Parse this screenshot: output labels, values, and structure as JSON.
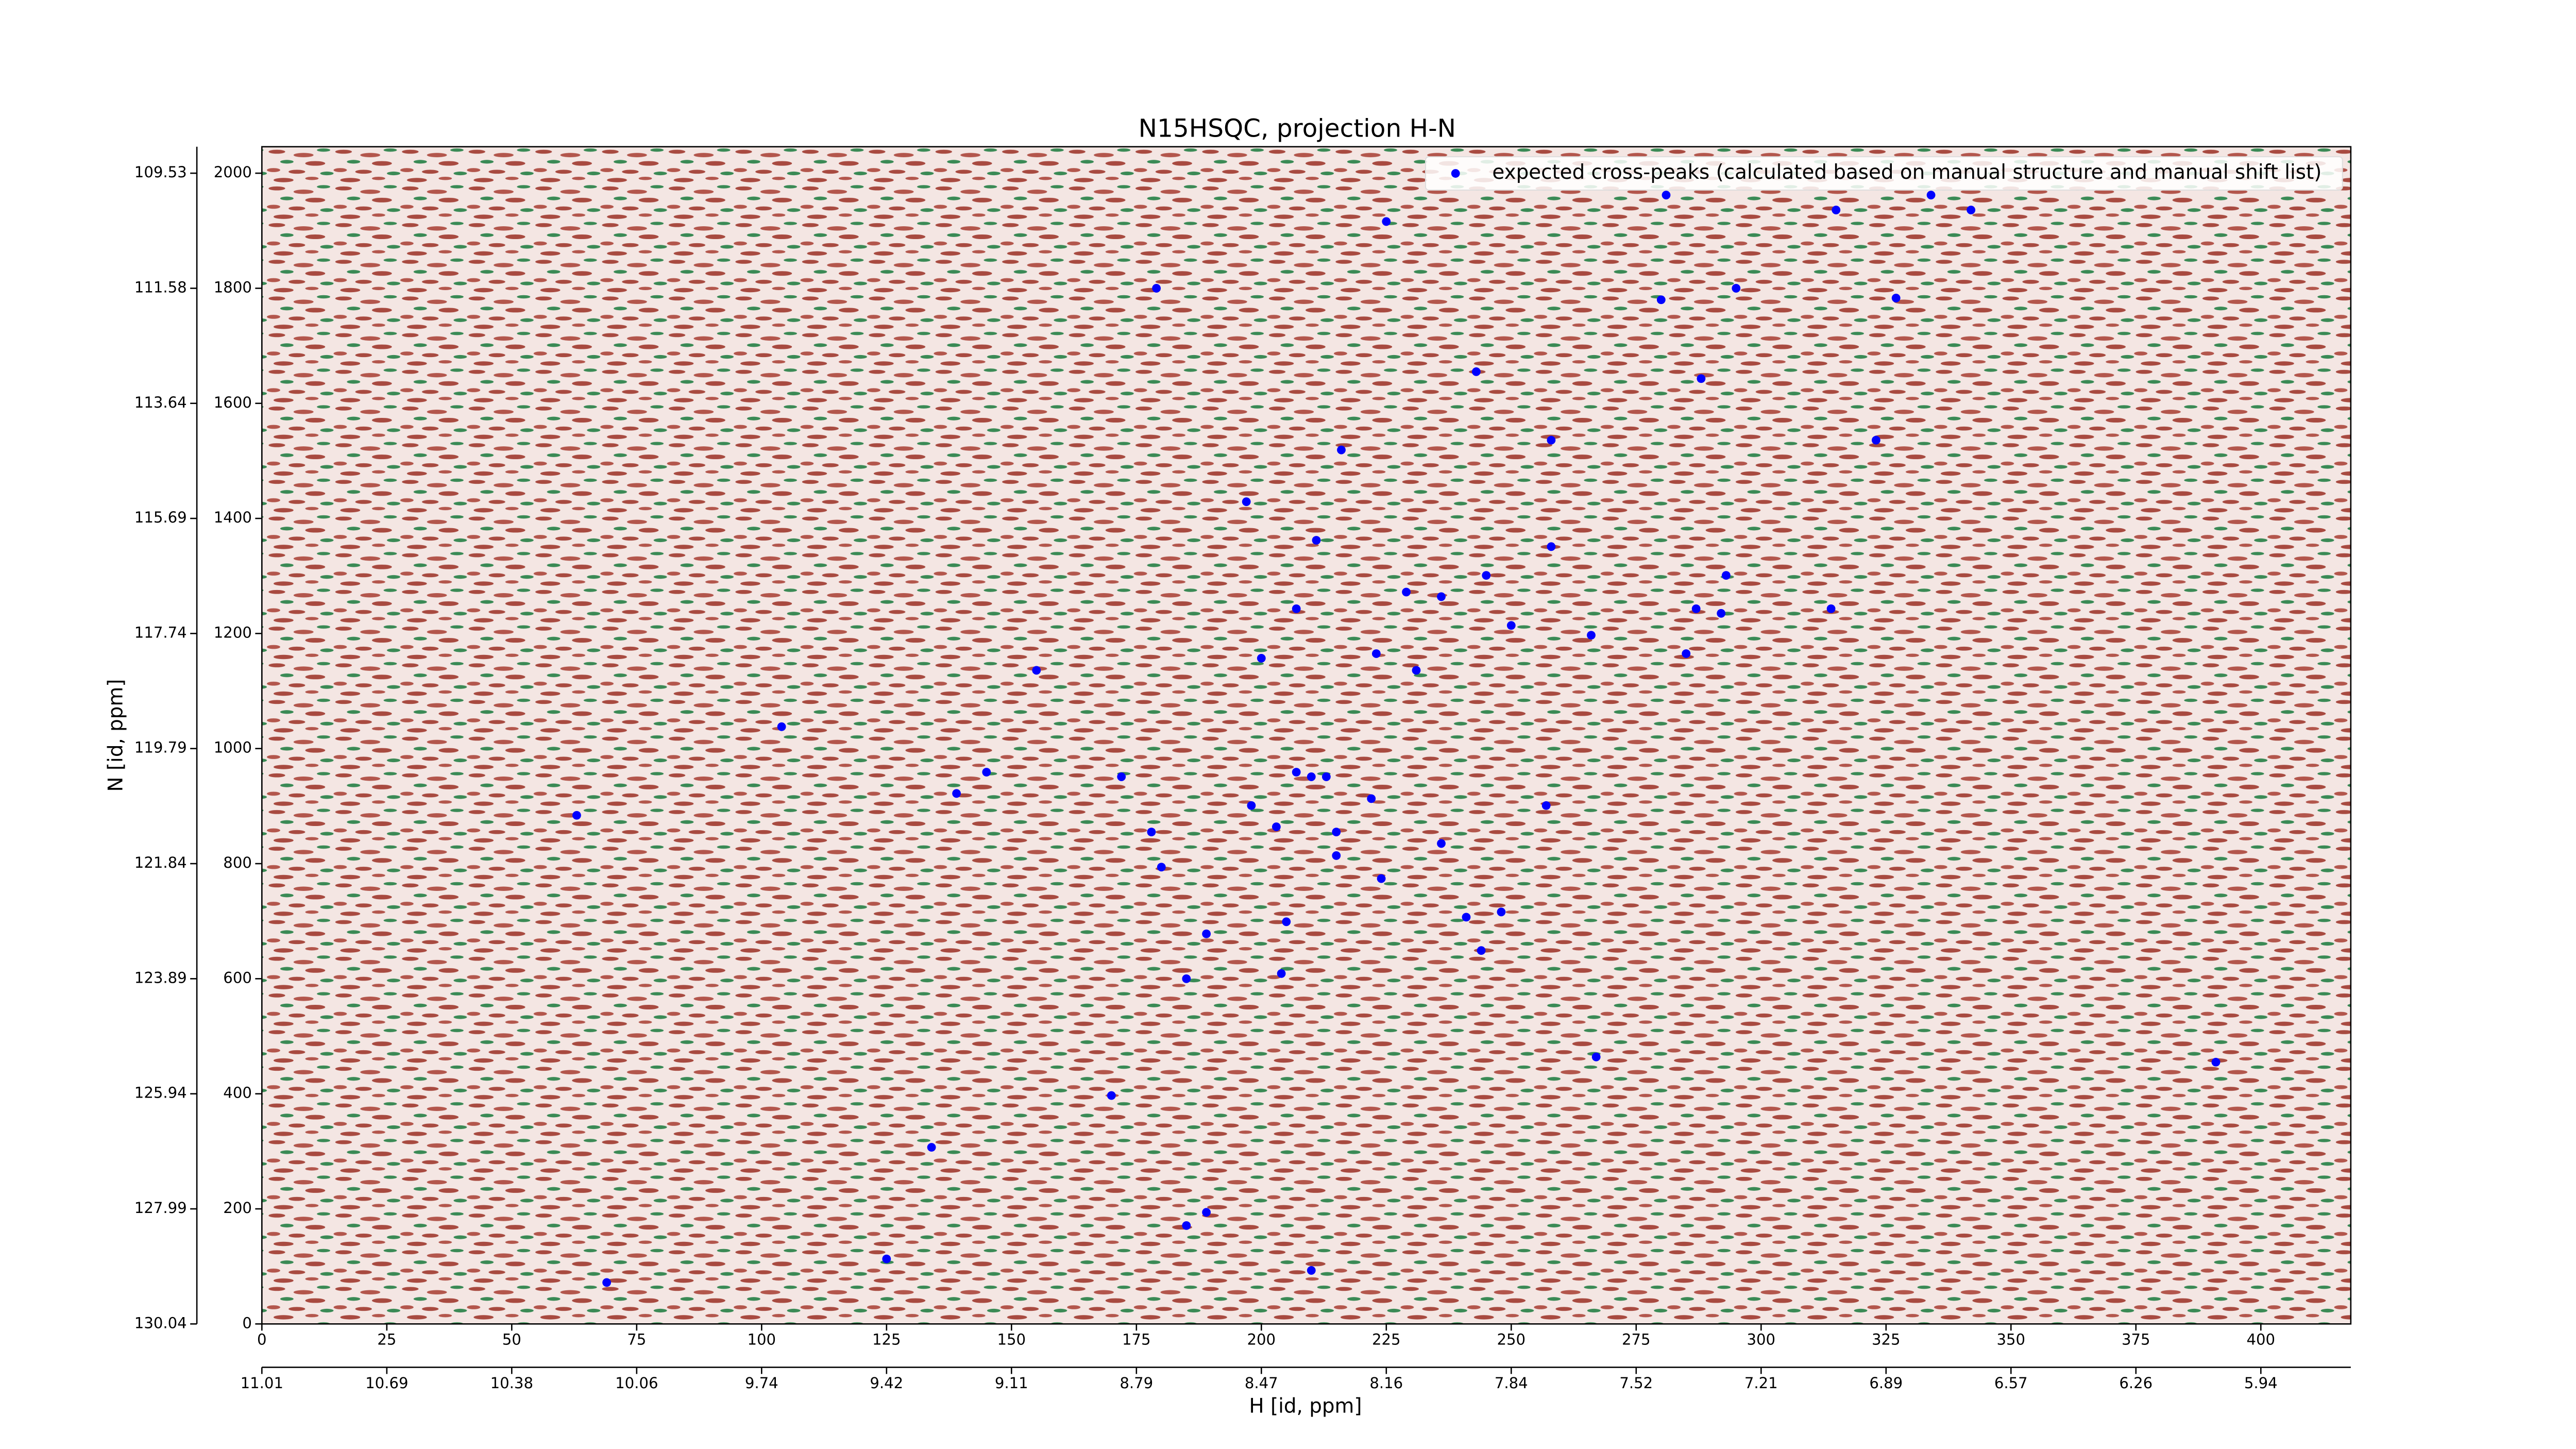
{
  "chart_data": {
    "type": "scatter",
    "title": "N15HSQC, projection H-N",
    "x_label": "H [id, ppm]",
    "y_label": "N [id, ppm]",
    "xlim": [
      0,
      418
    ],
    "ylim": [
      0,
      2046
    ],
    "xticks": [
      0,
      25,
      50,
      75,
      100,
      125,
      150,
      175,
      200,
      225,
      250,
      275,
      300,
      325,
      350,
      375,
      400
    ],
    "xticks_ppm": [
      {
        "value": 0,
        "label": "11.01"
      },
      {
        "value": 25,
        "label": "10.69"
      },
      {
        "value": 50,
        "label": "10.38"
      },
      {
        "value": 75,
        "label": "10.06"
      },
      {
        "value": 100,
        "label": "9.74"
      },
      {
        "value": 125,
        "label": "9.42"
      },
      {
        "value": 150,
        "label": "9.11"
      },
      {
        "value": 175,
        "label": "8.79"
      },
      {
        "value": 200,
        "label": "8.47"
      },
      {
        "value": 225,
        "label": "8.16"
      },
      {
        "value": 250,
        "label": "7.84"
      },
      {
        "value": 275,
        "label": "7.52"
      },
      {
        "value": 300,
        "label": "7.21"
      },
      {
        "value": 325,
        "label": "6.89"
      },
      {
        "value": 350,
        "label": "6.57"
      },
      {
        "value": 375,
        "label": "6.26"
      },
      {
        "value": 400,
        "label": "5.94"
      }
    ],
    "yticks": [
      0,
      200,
      400,
      600,
      800,
      1000,
      1200,
      1400,
      1600,
      1800,
      2000
    ],
    "yticks_ppm": [
      {
        "value": 0,
        "label": "130.04"
      },
      {
        "value": 200,
        "label": "127.99"
      },
      {
        "value": 400,
        "label": "125.94"
      },
      {
        "value": 600,
        "label": "123.89"
      },
      {
        "value": 800,
        "label": "121.84"
      },
      {
        "value": 1000,
        "label": "119.79"
      },
      {
        "value": 1200,
        "label": "117.74"
      },
      {
        "value": 1400,
        "label": "115.69"
      },
      {
        "value": 1600,
        "label": "113.64"
      },
      {
        "value": 1800,
        "label": "111.58"
      },
      {
        "value": 2000,
        "label": "109.53"
      }
    ],
    "legend": "upper right",
    "series": [
      {
        "name": "expected cross-peaks (calculated based on manual structure and manual shift list)",
        "color": "#0000ff",
        "x": [
          281,
          334,
          315,
          342,
          225,
          179,
          280,
          295,
          327,
          243,
          288,
          258,
          323,
          216,
          197,
          211,
          258,
          245,
          293,
          229,
          236,
          207,
          287,
          292,
          314,
          250,
          266,
          200,
          223,
          285,
          231,
          155,
          104,
          145,
          172,
          207,
          210,
          213,
          139,
          222,
          198,
          257,
          63,
          203,
          178,
          215,
          236,
          215,
          180,
          224,
          248,
          241,
          205,
          189,
          244,
          185,
          204,
          267,
          391,
          170,
          134,
          189,
          185,
          125,
          210,
          69
        ],
        "values": [
          1962,
          1962,
          1936,
          1936,
          1916,
          1800,
          1780,
          1800,
          1783,
          1655,
          1643,
          1536,
          1536,
          1519,
          1429,
          1362,
          1351,
          1301,
          1301,
          1272,
          1264,
          1243,
          1243,
          1235,
          1243,
          1214,
          1197,
          1157,
          1165,
          1165,
          1136,
          1136,
          1038,
          959,
          951,
          959,
          951,
          951,
          922,
          913,
          901,
          901,
          884,
          864,
          855,
          855,
          835,
          814,
          794,
          774,
          716,
          707,
          699,
          678,
          649,
          600,
          609,
          464,
          455,
          397,
          307,
          194,
          171,
          113,
          93,
          72
        ]
      }
    ]
  }
}
